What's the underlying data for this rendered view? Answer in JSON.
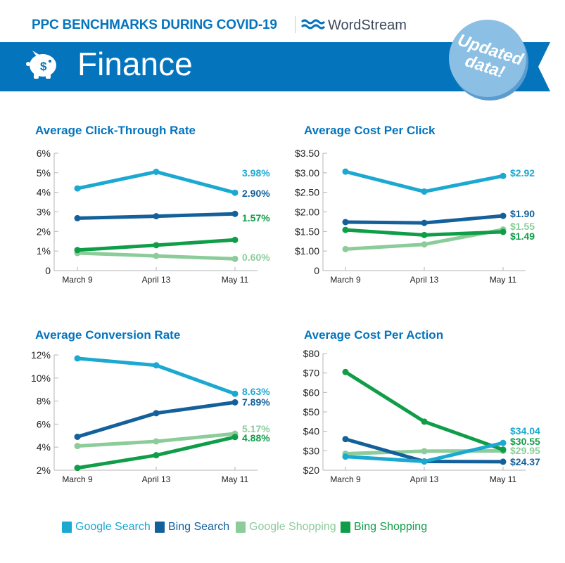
{
  "header": {
    "title": "PPC BENCHMARKS DURING COVID-19",
    "brand": "WordStream",
    "category": "Finance",
    "category_icon": "piggy-bank-dollar-icon",
    "badge": [
      "Updated",
      "data!"
    ]
  },
  "colors": {
    "banner": "#0474bd",
    "title": "#0474bd",
    "badge": "#8bbfe3",
    "Google Search": "#1ba8d1",
    "Bing Search": "#14609a",
    "Google Shopping": "#8ccc9a",
    "Bing Shopping": "#0f9d48"
  },
  "legend": [
    "Google Search",
    "Bing Search",
    "Google Shopping",
    "Bing Shopping"
  ],
  "chart_data": [
    {
      "type": "line",
      "title": "Average Click-Through Rate",
      "categories": [
        "March 9",
        "April 13",
        "May 11"
      ],
      "yticks": [
        "0",
        "1%",
        "2%",
        "3%",
        "4%",
        "5%",
        "6%"
      ],
      "ytick_values": [
        0,
        1,
        2,
        3,
        4,
        5,
        6
      ],
      "ylim": [
        0,
        6
      ],
      "series": [
        {
          "name": "Google Search",
          "values": [
            4.2,
            5.05,
            3.98
          ],
          "label": "3.98%"
        },
        {
          "name": "Bing Search",
          "values": [
            2.68,
            2.78,
            2.9
          ],
          "label": "2.90%"
        },
        {
          "name": "Bing Shopping",
          "values": [
            1.05,
            1.3,
            1.57
          ],
          "label": "1.57%"
        },
        {
          "name": "Google Shopping",
          "values": [
            0.9,
            0.75,
            0.6
          ],
          "label": "0.60%"
        }
      ]
    },
    {
      "type": "line",
      "title": "Average Cost Per Click",
      "categories": [
        "March 9",
        "April 13",
        "May 11"
      ],
      "yticks": [
        "0",
        "$1.00",
        "$1.50",
        "$2.00",
        "$2.50",
        "$3.00",
        "$3.50"
      ],
      "ytick_values": [
        0,
        1,
        1.5,
        2,
        2.5,
        3,
        3.5
      ],
      "ylim": [
        0,
        3.5
      ],
      "series": [
        {
          "name": "Google Search",
          "values": [
            3.03,
            2.52,
            2.92
          ],
          "label": "$2.92"
        },
        {
          "name": "Bing Search",
          "values": [
            1.74,
            1.72,
            1.9
          ],
          "label": "$1.90"
        },
        {
          "name": "Google Shopping",
          "values": [
            1.05,
            1.17,
            1.55
          ],
          "label": "$1.55"
        },
        {
          "name": "Bing Shopping",
          "values": [
            1.54,
            1.41,
            1.49
          ],
          "label": "$1.49"
        }
      ]
    },
    {
      "type": "line",
      "title": "Average Conversion Rate",
      "categories": [
        "March 9",
        "April 13",
        "May 11"
      ],
      "yticks": [
        "2%",
        "4%",
        "6%",
        "8%",
        "10%",
        "12%"
      ],
      "ytick_values": [
        2,
        4,
        6,
        8,
        10,
        12
      ],
      "ylim": [
        2,
        12
      ],
      "series": [
        {
          "name": "Google Search",
          "values": [
            11.7,
            11.1,
            8.63
          ],
          "label": "8.63%"
        },
        {
          "name": "Bing Search",
          "values": [
            4.9,
            6.95,
            7.89
          ],
          "label": "7.89%"
        },
        {
          "name": "Google Shopping",
          "values": [
            4.1,
            4.5,
            5.17
          ],
          "label": "5.17%"
        },
        {
          "name": "Bing Shopping",
          "values": [
            2.2,
            3.3,
            4.88
          ],
          "label": "4.88%"
        }
      ]
    },
    {
      "type": "line",
      "title": "Average Cost Per Action",
      "categories": [
        "March 9",
        "April 13",
        "May 11"
      ],
      "yticks": [
        "$20",
        "$30",
        "$40",
        "$50",
        "$60",
        "$70",
        "$80"
      ],
      "ytick_values": [
        20,
        30,
        40,
        50,
        60,
        70,
        80
      ],
      "ylim": [
        20,
        80
      ],
      "series": [
        {
          "name": "Google Search",
          "values": [
            27,
            24.5,
            34.04
          ],
          "label": "$34.04"
        },
        {
          "name": "Bing Shopping",
          "values": [
            70.5,
            45,
            30.55
          ],
          "label": "$30.55"
        },
        {
          "name": "Google Shopping",
          "values": [
            28.5,
            29.8,
            29.95
          ],
          "label": "$29.95"
        },
        {
          "name": "Bing Search",
          "values": [
            36,
            24.5,
            24.37
          ],
          "label": "$24.37"
        }
      ]
    }
  ]
}
